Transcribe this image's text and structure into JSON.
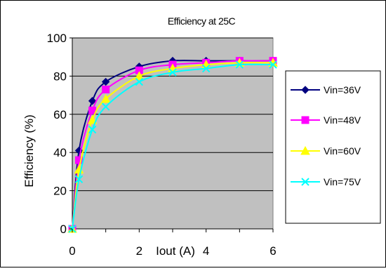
{
  "chart_data": {
    "type": "line",
    "title": "Efficiency at 25C",
    "xlabel": "Iout (A)",
    "ylabel": "Efficiency (%)",
    "xlim": [
      0,
      6
    ],
    "ylim": [
      0,
      100
    ],
    "yticks": [
      0,
      20,
      40,
      60,
      80,
      100
    ],
    "xticks": [
      0,
      2,
      4,
      6
    ],
    "grid": true,
    "legend_position": "right",
    "background_color": "#c0c0c0",
    "x": [
      0,
      0.2,
      0.6,
      1,
      2,
      3,
      4,
      5,
      6
    ],
    "series": [
      {
        "name": "Vin=36V",
        "color": "#000080",
        "marker": "diamond",
        "values": [
          0,
          41,
          67,
          77,
          85,
          88,
          88,
          88,
          88
        ]
      },
      {
        "name": "Vin=48V",
        "color": "#ff00ff",
        "marker": "square",
        "values": [
          0,
          36,
          62,
          73,
          83,
          86,
          87,
          88,
          88
        ]
      },
      {
        "name": "Vin=60V",
        "color": "#ffff00",
        "marker": "triangle",
        "values": [
          0,
          31,
          57,
          68,
          80,
          84,
          86,
          87,
          87
        ]
      },
      {
        "name": "Vin=75V",
        "color": "#00ffff",
        "marker": "x",
        "values": [
          0,
          26,
          52,
          64,
          77,
          82,
          84,
          86,
          86
        ]
      }
    ]
  }
}
